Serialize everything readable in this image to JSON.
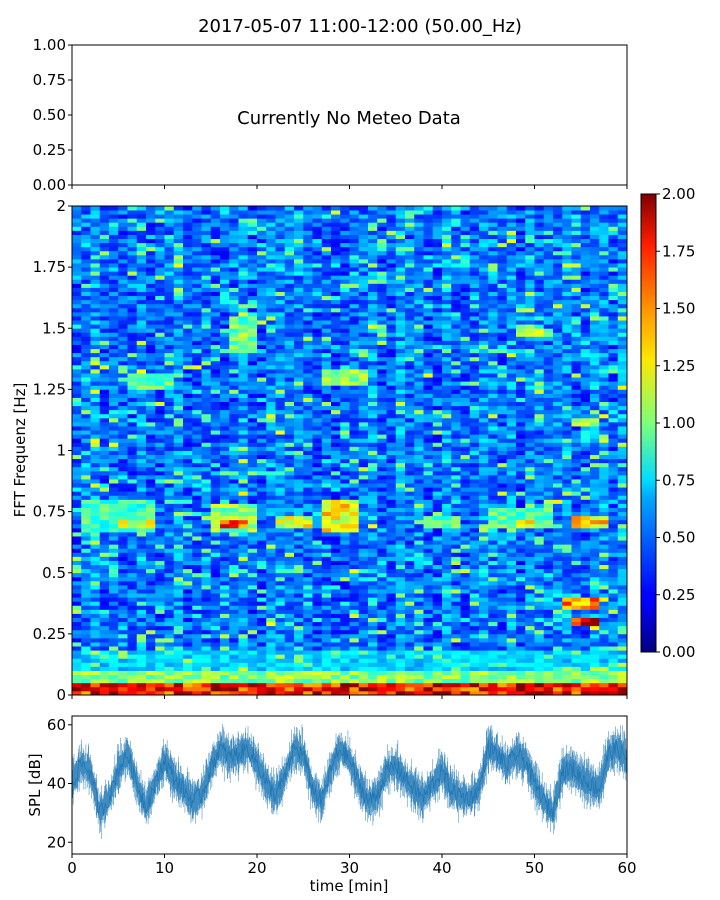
{
  "figure": {
    "title": "2017-05-07 11:00-12:00 (50.00_Hz)"
  },
  "chart_data": [
    {
      "type": "line",
      "panel": "meteo",
      "message": "Currently No Meteo Data",
      "ylim": [
        0,
        1
      ],
      "yticks": [
        "0.00",
        "0.25",
        "0.50",
        "0.75",
        "1.00"
      ],
      "x_tick_count": 6,
      "series": []
    },
    {
      "type": "heatmap",
      "panel": "spectrogram",
      "ylabel": "FFT Frequenz [Hz]",
      "xlim": [
        0,
        60
      ],
      "ylim": [
        0,
        2
      ],
      "yticks": [
        "0",
        "0.25",
        "0.5",
        "0.75",
        "1",
        "1.25",
        "1.5",
        "1.75",
        "2"
      ],
      "colormap": "jet",
      "colorbar": {
        "range": [
          0,
          2
        ],
        "ticks": [
          "0.00",
          "0.25",
          "0.50",
          "0.75",
          "1.00",
          "1.25",
          "1.50",
          "1.75",
          "2.00"
        ]
      },
      "time_columns": 60,
      "frequency_rows": 120,
      "hotspots": [
        {
          "t": [
            0,
            60
          ],
          "f": [
            0,
            0.05
          ],
          "value": 1.85
        },
        {
          "t": [
            0,
            60
          ],
          "f": [
            0.05,
            0.1
          ],
          "value": 1.1
        },
        {
          "t": [
            0,
            60
          ],
          "f": [
            0.1,
            0.18
          ],
          "value": 0.7
        },
        {
          "t": [
            1,
            9
          ],
          "f": [
            0.66,
            0.8
          ],
          "value": 0.95
        },
        {
          "t": [
            5,
            9
          ],
          "f": [
            0.68,
            0.72
          ],
          "value": 1.3
        },
        {
          "t": [
            15,
            20
          ],
          "f": [
            0.66,
            0.78
          ],
          "value": 1.1
        },
        {
          "t": [
            16,
            19
          ],
          "f": [
            0.69,
            0.72
          ],
          "value": 1.7
        },
        {
          "t": [
            17,
            20
          ],
          "f": [
            1.4,
            1.55
          ],
          "value": 1.0
        },
        {
          "t": [
            22,
            26
          ],
          "f": [
            0.68,
            0.74
          ],
          "value": 1.3
        },
        {
          "t": [
            27,
            31
          ],
          "f": [
            0.66,
            0.8
          ],
          "value": 1.35
        },
        {
          "t": [
            27,
            32
          ],
          "f": [
            1.27,
            1.33
          ],
          "value": 1.1
        },
        {
          "t": [
            6,
            11
          ],
          "f": [
            1.25,
            1.32
          ],
          "value": 1.0
        },
        {
          "t": [
            38,
            42
          ],
          "f": [
            0.68,
            0.74
          ],
          "value": 1.0
        },
        {
          "t": [
            45,
            52
          ],
          "f": [
            0.68,
            0.76
          ],
          "value": 1.0
        },
        {
          "t": [
            48,
            50
          ],
          "f": [
            0.69,
            0.72
          ],
          "value": 1.5
        },
        {
          "t": [
            53,
            57
          ],
          "f": [
            0.35,
            0.4
          ],
          "value": 1.6
        },
        {
          "t": [
            54,
            57
          ],
          "f": [
            0.29,
            0.31
          ],
          "value": 1.9
        },
        {
          "t": [
            54,
            58
          ],
          "f": [
            0.68,
            0.74
          ],
          "value": 1.4
        },
        {
          "t": [
            54,
            57
          ],
          "f": [
            1.1,
            1.13
          ],
          "value": 1.25
        },
        {
          "t": [
            48,
            52
          ],
          "f": [
            1.47,
            1.5
          ],
          "value": 1.2
        }
      ]
    },
    {
      "type": "line",
      "panel": "spl",
      "xlabel": "time [min]",
      "ylabel": "SPL [dB]",
      "xlim": [
        0,
        60
      ],
      "ylim": [
        16,
        63
      ],
      "xticks": [
        "0",
        "10",
        "20",
        "30",
        "40",
        "50",
        "60"
      ],
      "yticks": [
        "20",
        "40",
        "60"
      ],
      "color": "#1f77b4",
      "series": [
        {
          "x": [
            0,
            1,
            2,
            3,
            4,
            5,
            6,
            7,
            8,
            9,
            10,
            11,
            12,
            13,
            14,
            15,
            16,
            17,
            18,
            19,
            20,
            21,
            22,
            23,
            24,
            25,
            26,
            27,
            28,
            29,
            30,
            31,
            32,
            33,
            34,
            35,
            36,
            37,
            38,
            39,
            40,
            41,
            42,
            43,
            44,
            45,
            46,
            47,
            48,
            49,
            50,
            51,
            52,
            53,
            54,
            55,
            56,
            57,
            58,
            59,
            60
          ],
          "values": [
            40,
            47,
            44,
            30,
            35,
            45,
            50,
            40,
            32,
            40,
            48,
            42,
            38,
            34,
            36,
            45,
            52,
            49,
            50,
            52,
            47,
            40,
            36,
            42,
            52,
            50,
            38,
            34,
            45,
            52,
            48,
            40,
            34,
            36,
            44,
            46,
            42,
            38,
            35,
            40,
            44,
            38,
            36,
            35,
            38,
            52,
            50,
            46,
            50,
            48,
            40,
            34,
            30,
            44,
            45,
            42,
            40,
            38,
            50,
            52,
            48
          ]
        }
      ]
    }
  ]
}
